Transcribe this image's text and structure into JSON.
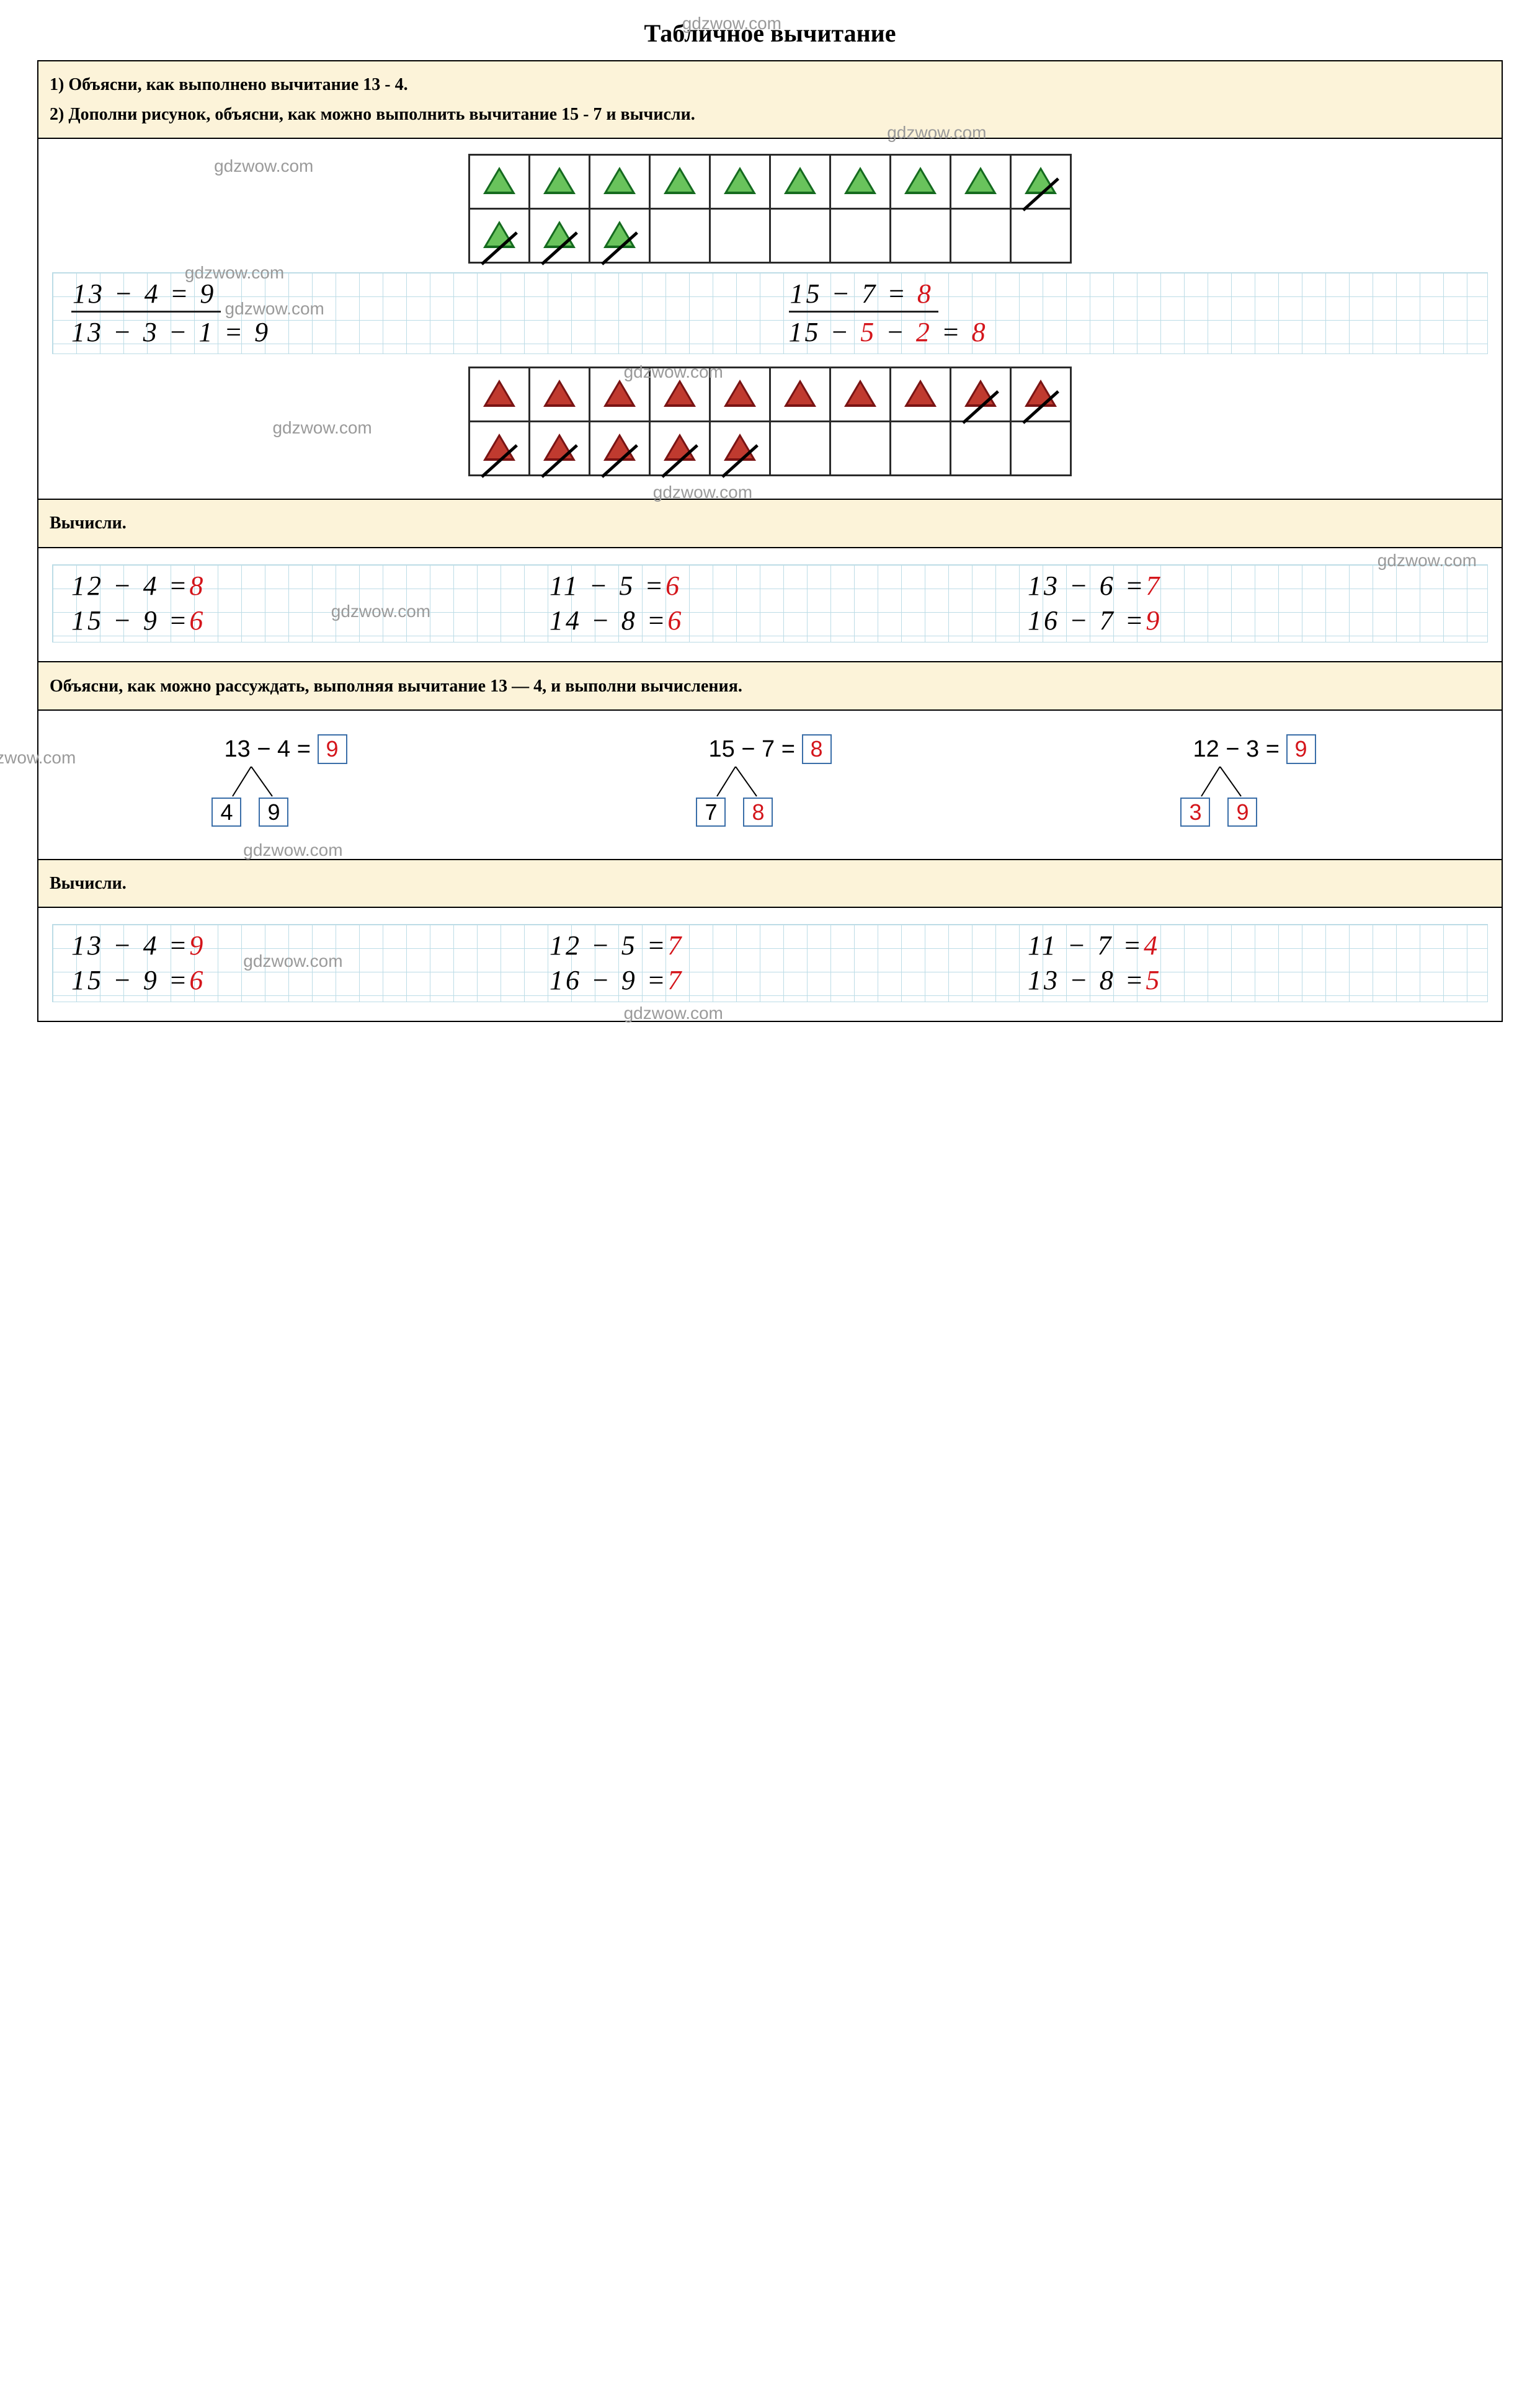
{
  "watermark": "gdzwow.com",
  "title": "Табличное вычитание",
  "task1": {
    "line1": "1) Объясни, как выполнено вычитание 13 - 4.",
    "line2": "2) Дополни рисунок, объясни, как можно выполнить вычитание 15 - 7 и вычисли."
  },
  "triangles_green": {
    "color": "#69c35c",
    "outline": "#156b1f",
    "rows": [
      [
        {
          "strike": false
        },
        {
          "strike": false
        },
        {
          "strike": false
        },
        {
          "strike": false
        },
        {
          "strike": false
        },
        {
          "strike": false
        },
        {
          "strike": false
        },
        {
          "strike": false
        },
        {
          "strike": false
        },
        {
          "strike": true
        }
      ],
      [
        {
          "strike": true
        },
        {
          "strike": true
        },
        {
          "strike": true
        },
        null,
        null,
        null,
        null,
        null,
        null,
        null
      ]
    ]
  },
  "eq_block1": {
    "left_top": "13 − 4 = 9",
    "left_bottom": "13 − 3 − 1 = 9",
    "right_top_black": "15 − 7 =",
    "right_top_red": "8",
    "right_bottom_black1": "15 −",
    "right_bottom_red1": "5",
    "right_bottom_black2": "−",
    "right_bottom_red2": "2",
    "right_bottom_black3": "=",
    "right_bottom_red3": "8"
  },
  "triangles_red": {
    "color": "#c03a2f",
    "outline": "#7a1414",
    "rows": [
      [
        {
          "strike": false
        },
        {
          "strike": false
        },
        {
          "strike": false
        },
        {
          "strike": false
        },
        {
          "strike": false
        },
        {
          "strike": false
        },
        {
          "strike": false
        },
        {
          "strike": false
        },
        {
          "strike": true
        },
        {
          "strike": true
        }
      ],
      [
        {
          "strike": true
        },
        {
          "strike": true
        },
        {
          "strike": true
        },
        {
          "strike": true
        },
        {
          "strike": true
        },
        null,
        null,
        null,
        null,
        null
      ]
    ]
  },
  "task2_header": "Вычисли.",
  "calc_block1": {
    "rows": [
      [
        {
          "lhs": "12 − 4 =",
          "ans": "8"
        },
        {
          "lhs": "11 − 5 =",
          "ans": "6"
        },
        {
          "lhs": "13 − 6 =",
          "ans": "7"
        }
      ],
      [
        {
          "lhs": "15 − 9 =",
          "ans": "6"
        },
        {
          "lhs": "14 − 8 =",
          "ans": "6"
        },
        {
          "lhs": "16 − 7 =",
          "ans": "9"
        }
      ]
    ]
  },
  "task3_header": "Объясни, как можно рассуждать, выполняя вычитание 13 — 4, и выполни вычисления.",
  "decomp": [
    {
      "eq_lhs": "13 − 4 =",
      "eq_ans": "9",
      "leaf1": "4",
      "leaf1_red": false,
      "leaf2": "9",
      "leaf2_red": false
    },
    {
      "eq_lhs": "15 − 7 =",
      "eq_ans": "8",
      "leaf1": "7",
      "leaf1_red": false,
      "leaf2": "8",
      "leaf2_red": true
    },
    {
      "eq_lhs": "12 − 3 =",
      "eq_ans": "9",
      "leaf1": "3",
      "leaf1_red": true,
      "leaf2": "9",
      "leaf2_red": true
    }
  ],
  "task4_header": "Вычисли.",
  "calc_block2": {
    "rows": [
      [
        {
          "lhs": "13 − 4 =",
          "ans": "9"
        },
        {
          "lhs": "12 − 5 =",
          "ans": "7"
        },
        {
          "lhs": "11 − 7 =",
          "ans": "4"
        }
      ],
      [
        {
          "lhs": "15 − 9 =",
          "ans": "6"
        },
        {
          "lhs": "16 − 9 =",
          "ans": "7"
        },
        {
          "lhs": "13 − 8 =",
          "ans": "5"
        }
      ]
    ]
  },
  "colors": {
    "header_bg": "#fcf3d9",
    "border": "#000000",
    "grid_line": "#bcdce6",
    "box_border": "#3a6ea8",
    "answer_red": "#d4151b",
    "watermark_grey": "#9a9a9a"
  }
}
